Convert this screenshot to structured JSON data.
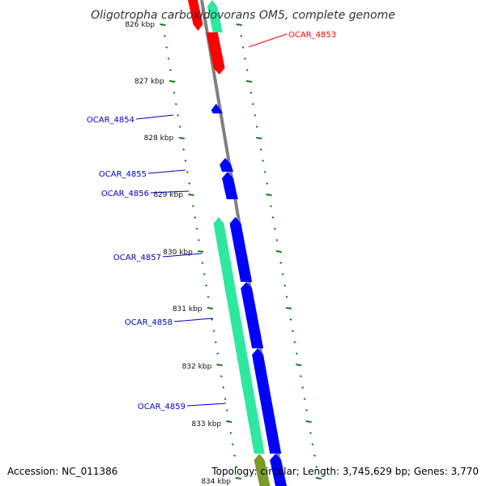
{
  "title": "Oligotropha carboxidovorans OM5, complete genome",
  "footer": {
    "accession": "Accession: NC_011386",
    "topology": "Topology: circular; Length: 3,745,629 bp; Genes: 3,770"
  },
  "kbp_labels": [
    "826 kbp",
    "827 kbp",
    "828 kbp",
    "829 kbp",
    "830 kbp",
    "831 kbp",
    "832 kbp",
    "833 kbp",
    "834 kbp"
  ],
  "genes": [
    {
      "name": "OCAR_4853",
      "color": "#ff0000"
    },
    {
      "name": "OCAR_4854",
      "color": "#0000cc"
    },
    {
      "name": "OCAR_4855",
      "color": "#0000cc"
    },
    {
      "name": "OCAR_4856",
      "color": "#0000cc"
    },
    {
      "name": "OCAR_4857",
      "color": "#0000cc"
    },
    {
      "name": "OCAR_4858",
      "color": "#0000cc"
    },
    {
      "name": "OCAR_4859",
      "color": "#0000cc"
    }
  ],
  "colors": {
    "backbone": "#808080",
    "forward_cds": "#0000ff",
    "reverse_cds": "#ff0000",
    "rna_track": "#2ee8a0",
    "olive_track": "#7a9a2a",
    "tick": "#1a7a1a"
  }
}
